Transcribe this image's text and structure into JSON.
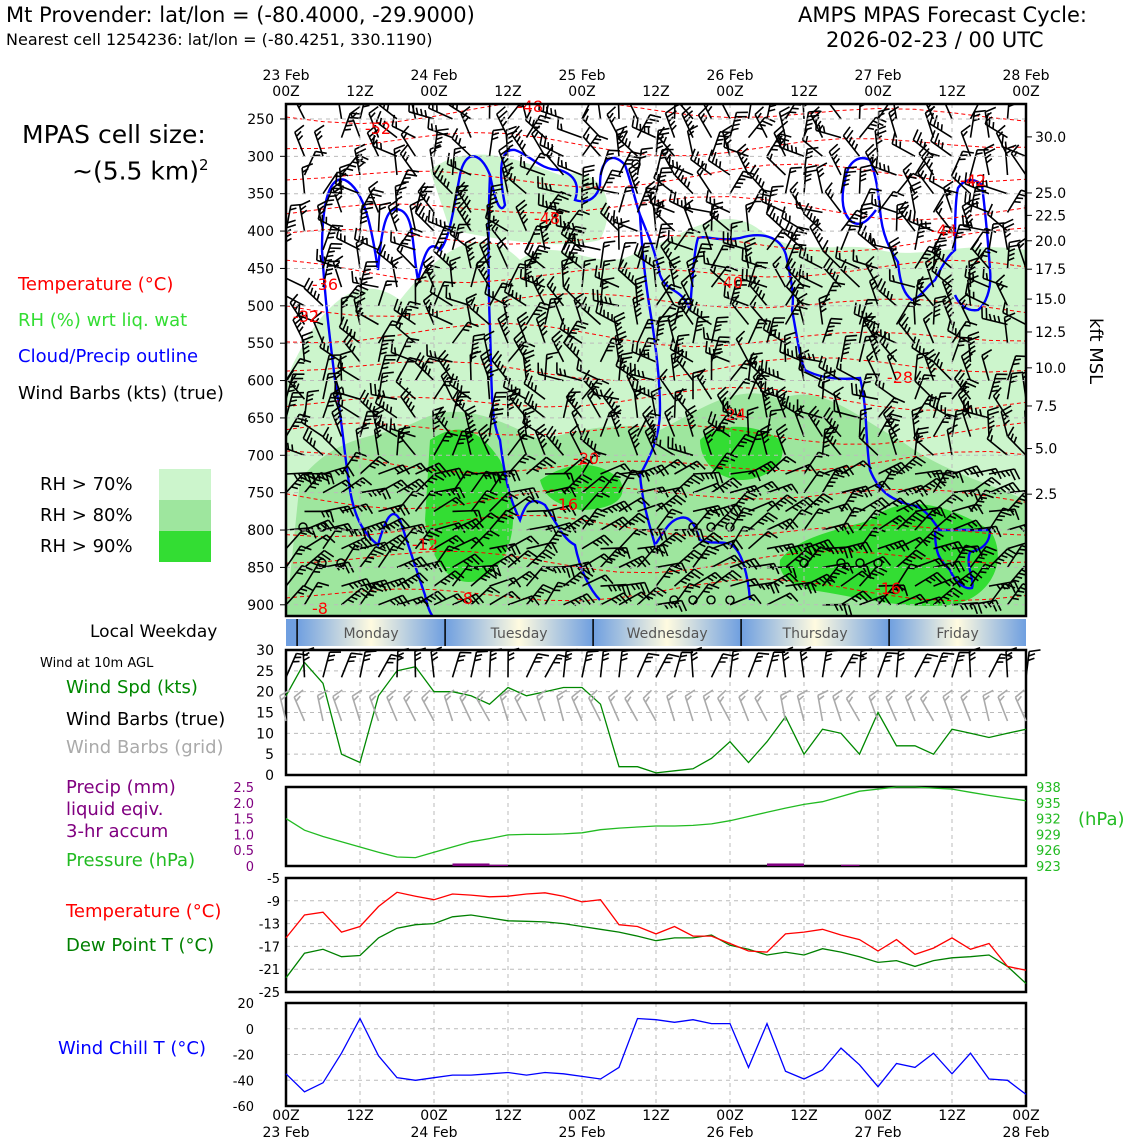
{
  "header": {
    "location_line": "Mt Provender: lat/lon = (-80.4000, -29.9000)",
    "cell_line": "Nearest cell 1254236: lat/lon = (-80.4251, 330.1190)",
    "cycle_title": "AMPS MPAS Forecast Cycle:",
    "cycle_time": "2026-02-23 / 00 UTC"
  },
  "cell_size": {
    "line1": "MPAS cell size:",
    "line2_prefix": "~(5.5 km)",
    "line2_sup": "2"
  },
  "legend": {
    "temperature": "Temperature (°C)",
    "rh": "RH (%) wrt liq. wat",
    "cloud": "Cloud/Precip outline",
    "barbs": "Wind Barbs (kts) (true)",
    "rh70": "RH > 70%",
    "rh80": "RH > 80%",
    "rh90": "RH > 90%"
  },
  "colors": {
    "temperature": "#ff0000",
    "rh_label": "#33dd33",
    "cloud": "#0000ff",
    "rh70": "#ccf5cc",
    "rh80": "#9ee69e",
    "rh90": "#33dd33",
    "wind_spd": "#008800",
    "grid_barbs": "#aaaaaa",
    "precip": "#800080",
    "pressure": "#22bb22",
    "dewpoint": "#008000",
    "windchill": "#0000ff"
  },
  "time_axis": {
    "top_labels": [
      {
        "day": "23 Feb",
        "hour": "00Z"
      },
      {
        "day": "",
        "hour": "12Z"
      },
      {
        "day": "24 Feb",
        "hour": "00Z"
      },
      {
        "day": "",
        "hour": "12Z"
      },
      {
        "day": "25 Feb",
        "hour": "00Z"
      },
      {
        "day": "",
        "hour": "12Z"
      },
      {
        "day": "26 Feb",
        "hour": "00Z"
      },
      {
        "day": "",
        "hour": "12Z"
      },
      {
        "day": "27 Feb",
        "hour": "00Z"
      },
      {
        "day": "",
        "hour": "12Z"
      },
      {
        "day": "28 Feb",
        "hour": "00Z"
      }
    ],
    "bottom_labels": [
      {
        "hour": "00Z",
        "day": "23 Feb"
      },
      {
        "hour": "12Z",
        "day": ""
      },
      {
        "hour": "00Z",
        "day": "24 Feb"
      },
      {
        "hour": "12Z",
        "day": ""
      },
      {
        "hour": "00Z",
        "day": "25 Feb"
      },
      {
        "hour": "12Z",
        "day": ""
      },
      {
        "hour": "00Z",
        "day": "26 Feb"
      },
      {
        "hour": "12Z",
        "day": ""
      },
      {
        "hour": "00Z",
        "day": "27 Feb"
      },
      {
        "hour": "12Z",
        "day": ""
      },
      {
        "hour": "00Z",
        "day": "28 Feb"
      }
    ]
  },
  "weekday": {
    "label": "Local Weekday",
    "days": [
      "Monday",
      "Tuesday",
      "Wednesday",
      "Thursday",
      "Friday"
    ]
  },
  "chart_data": [
    {
      "type": "heatmap",
      "panel": "cross-section",
      "y_left_ticks": [
        "250",
        "300",
        "350",
        "400",
        "450",
        "500",
        "550",
        "600",
        "650",
        "700",
        "750",
        "800",
        "850",
        "900"
      ],
      "y_left_values": [
        250,
        300,
        350,
        400,
        450,
        500,
        550,
        600,
        650,
        700,
        750,
        800,
        850,
        900
      ],
      "ylim_hpa": [
        230,
        915
      ],
      "y_right_ticks": [
        {
          "label": "30.0",
          "p": 274
        },
        {
          "label": "25.0",
          "p": 349
        },
        {
          "label": "22.5",
          "p": 379
        },
        {
          "label": "20.0",
          "p": 413
        },
        {
          "label": "17.5",
          "p": 451
        },
        {
          "label": "15.0",
          "p": 491
        },
        {
          "label": "12.5",
          "p": 535
        },
        {
          "label": "10.0",
          "p": 583
        },
        {
          "label": "7.5",
          "p": 634
        },
        {
          "label": "5.0",
          "p": 691
        },
        {
          "label": "2.5",
          "p": 752
        }
      ],
      "y_right_label": "kft MSL",
      "temperature_contour_labels": [
        "-48",
        "-52",
        "-48",
        "-42",
        "-44",
        "-40",
        "-36",
        "-32",
        "-28",
        "-24",
        "-20",
        "-16",
        "-12",
        "-8",
        "-8",
        "-16"
      ],
      "grid": true
    },
    {
      "type": "line",
      "panel": "wind-10m",
      "title": "Wind at 10m AGL",
      "series_labels": [
        "Wind Spd (kts)",
        "Wind Barbs (true)",
        "Wind Barbs (grid)"
      ],
      "x_hours": [
        0,
        3,
        6,
        9,
        12,
        15,
        18,
        21,
        24,
        27,
        30,
        33,
        36,
        39,
        42,
        45,
        48,
        51,
        54,
        57,
        60,
        63,
        66,
        69,
        72,
        75,
        78,
        81,
        84,
        87,
        90,
        93,
        96,
        99,
        102,
        105,
        108,
        111,
        114,
        117,
        120
      ],
      "series": [
        {
          "name": "Wind Spd (kts)",
          "values": [
            19,
            27,
            22,
            5,
            3,
            19,
            25,
            26,
            20,
            20,
            19,
            17,
            21,
            19,
            20,
            21,
            21,
            17,
            2,
            2,
            0.5,
            1,
            1.5,
            4,
            8,
            3,
            8,
            14,
            5,
            11,
            10,
            5,
            15,
            7,
            7,
            5,
            11,
            10,
            9,
            10,
            11
          ]
        }
      ],
      "ylim": [
        0,
        30
      ],
      "y_ticks": [
        0,
        5,
        10,
        15,
        20,
        25,
        30
      ]
    },
    {
      "type": "line",
      "panel": "precip-pressure",
      "series_labels": [
        "Precip (mm)",
        "liquid eqiv.",
        "3-hr accum",
        "Pressure (hPa)"
      ],
      "precip_ticks": [
        "0",
        "0.5",
        "1.0",
        "1.5",
        "2.0",
        "2.5"
      ],
      "pressure_ticks": [
        "923",
        "926",
        "929",
        "932",
        "935",
        "938"
      ],
      "pressure_unit": "(hPa)",
      "x_hours": [
        0,
        3,
        6,
        9,
        12,
        15,
        18,
        21,
        24,
        27,
        30,
        33,
        36,
        39,
        42,
        45,
        48,
        51,
        54,
        57,
        60,
        63,
        66,
        69,
        72,
        75,
        78,
        81,
        84,
        87,
        90,
        93,
        96,
        99,
        102,
        105,
        108,
        111,
        114,
        117,
        120
      ],
      "series": [
        {
          "name": "Pressure (hPa)",
          "values": [
            932.0,
            929.8,
            928.6,
            927.6,
            926.6,
            925.6,
            924.7,
            924.6,
            925.6,
            926.6,
            927.6,
            928.2,
            928.9,
            929.0,
            929.0,
            929.1,
            929.3,
            929.9,
            930.2,
            930.4,
            930.6,
            930.6,
            930.7,
            931.0,
            931.6,
            932.4,
            933.2,
            934.0,
            934.7,
            935.2,
            936.2,
            937.2,
            937.6,
            938.0,
            938.0,
            937.8,
            937.6,
            937.0,
            936.4,
            935.9,
            935.4
          ]
        },
        {
          "name": "Precip (mm)",
          "bars": [
            {
              "start": 27,
              "end": 33,
              "value": 0.08
            },
            {
              "start": 33,
              "end": 36,
              "value": 0.04
            },
            {
              "start": 78,
              "end": 84,
              "value": 0.08
            },
            {
              "start": 90,
              "end": 93,
              "value": 0.04
            }
          ]
        }
      ],
      "ylim_precip": [
        0,
        2.5
      ],
      "ylim_pressure": [
        923,
        938
      ]
    },
    {
      "type": "line",
      "panel": "temperature",
      "series_labels": [
        "Temperature (°C)",
        "Dew Point T (°C)"
      ],
      "y_ticks": [
        "-5",
        "-9",
        "-13",
        "-17",
        "-21",
        "-25"
      ],
      "x_hours": [
        0,
        3,
        6,
        9,
        12,
        15,
        18,
        21,
        24,
        27,
        30,
        33,
        36,
        39,
        42,
        45,
        48,
        51,
        54,
        57,
        60,
        63,
        66,
        69,
        72,
        75,
        78,
        81,
        84,
        87,
        90,
        93,
        96,
        99,
        102,
        105,
        108,
        111,
        114,
        117,
        120
      ],
      "series": [
        {
          "name": "Temperature (°C)",
          "values": [
            -15.5,
            -11.5,
            -11,
            -14.5,
            -13.5,
            -10,
            -7.5,
            -8.2,
            -8.8,
            -7.8,
            -8,
            -8.3,
            -8.2,
            -7.8,
            -7.6,
            -8.2,
            -9.2,
            -8.8,
            -13.2,
            -13.5,
            -14.8,
            -13.5,
            -15.2,
            -15.2,
            -16.5,
            -17.8,
            -18,
            -14.8,
            -14.5,
            -14,
            -15,
            -15.8,
            -17.8,
            -15.8,
            -18.4,
            -17.3,
            -15.5,
            -17.5,
            -16.5,
            -20.5,
            -21.2
          ]
        },
        {
          "name": "Dew Point T (°C)",
          "values": [
            -22.5,
            -18.2,
            -17.5,
            -18.8,
            -18.6,
            -15.5,
            -13.8,
            -13.2,
            -13,
            -11.8,
            -11.5,
            -12,
            -12.5,
            -12.6,
            -12.7,
            -13,
            -13.5,
            -14,
            -14.5,
            -15.2,
            -16,
            -15.5,
            -15.5,
            -15,
            -16.8,
            -17.5,
            -18.5,
            -18,
            -18.5,
            -17.4,
            -18,
            -18.8,
            -19.8,
            -19.5,
            -20.5,
            -19.5,
            -19,
            -18.8,
            -18.5,
            -20.5,
            -23.5
          ]
        }
      ],
      "ylim": [
        -25,
        -5
      ]
    },
    {
      "type": "line",
      "panel": "wind-chill",
      "series_labels": [
        "Wind Chill T (°C)"
      ],
      "y_ticks": [
        "20",
        "0",
        "-20",
        "-40",
        "-60"
      ],
      "x_hours": [
        0,
        3,
        6,
        9,
        12,
        15,
        18,
        21,
        24,
        27,
        30,
        33,
        36,
        39,
        42,
        45,
        48,
        51,
        54,
        57,
        60,
        63,
        66,
        69,
        72,
        75,
        78,
        81,
        84,
        87,
        90,
        93,
        96,
        99,
        102,
        105,
        108,
        111,
        114,
        117,
        120
      ],
      "series": [
        {
          "name": "Wind Chill T (°C)",
          "values": [
            -35,
            -49,
            -42,
            -19,
            8,
            -21,
            -38,
            -40,
            -38,
            -36,
            -36,
            -35,
            -34,
            -36,
            -34,
            -35,
            -37,
            -39,
            -30,
            8,
            7,
            5,
            7,
            4,
            4,
            -30,
            4,
            -33,
            -39,
            -32,
            -15,
            -28,
            -45,
            -27,
            -30,
            -19,
            -35,
            -19,
            -39,
            -40,
            -51
          ]
        }
      ],
      "ylim": [
        -60,
        20
      ]
    }
  ]
}
